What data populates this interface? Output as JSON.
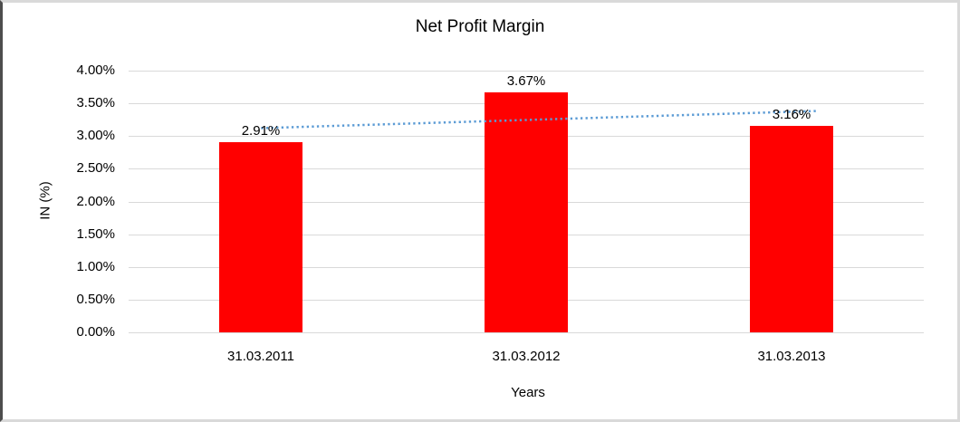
{
  "chart_data": {
    "type": "bar",
    "title": "Net Profit Margin",
    "categories": [
      "31.03.2011",
      "31.03.2012",
      "31.03.2013"
    ],
    "values": [
      2.91,
      3.67,
      3.16
    ],
    "data_labels": [
      "2.91%",
      "3.67%",
      "3.16%"
    ],
    "xlabel": "Years",
    "ylabel": "IN (%)",
    "ylim": [
      0,
      4
    ],
    "ytick_step": 0.5,
    "ytick_labels": [
      "0.00%",
      "0.50%",
      "1.00%",
      "1.50%",
      "2.00%",
      "2.50%",
      "3.00%",
      "3.50%",
      "4.00%"
    ],
    "grid": true,
    "legend": "none",
    "bar_color": "#ff0000",
    "gridline_color": "#d9d9d9",
    "trendline": {
      "type": "linear",
      "style": "dotted",
      "color": "#5b9bd5"
    }
  }
}
